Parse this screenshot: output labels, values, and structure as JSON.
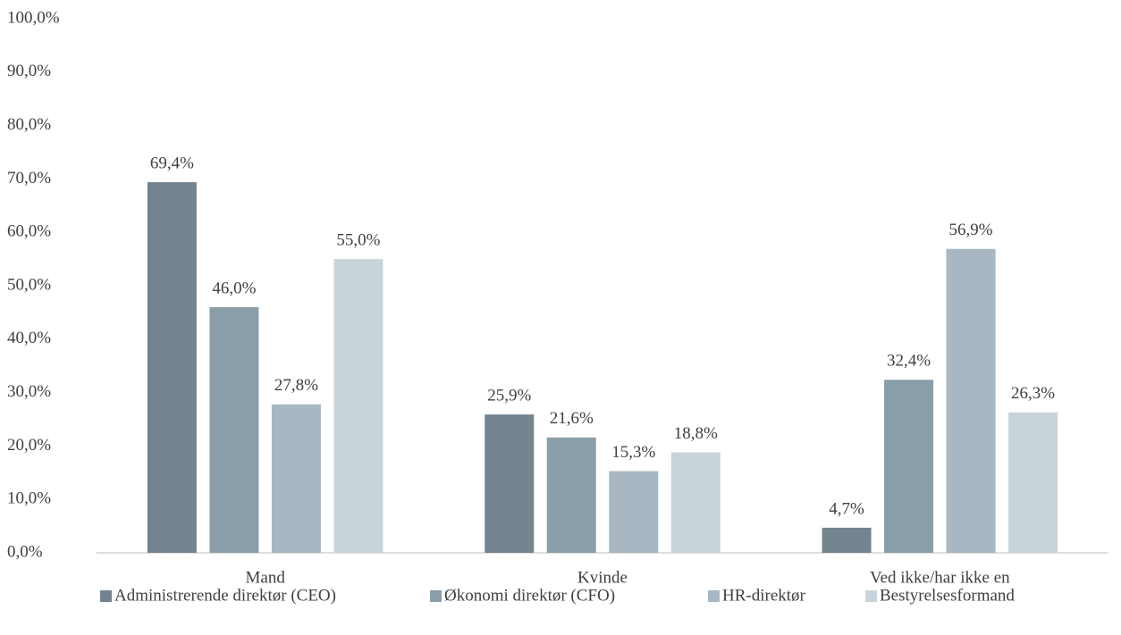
{
  "chart_data": {
    "type": "bar",
    "categories": [
      "Mand",
      "Kvinde",
      "Ved ikke/har ikke en"
    ],
    "series": [
      {
        "name": "Administrerende direktør (CEO)",
        "color": "#73848f",
        "values": [
          69.4,
          25.9,
          4.7
        ],
        "value_labels": [
          "69,4%",
          "25,9%",
          "4,7%"
        ]
      },
      {
        "name": "Økonomi direktør (CFO)",
        "color": "#8a9ea9",
        "values": [
          46.0,
          21.6,
          32.4
        ],
        "value_labels": [
          "46,0%",
          "21,6%",
          "32,4%"
        ]
      },
      {
        "name": "HR-direktør",
        "color": "#a8b7c1",
        "values": [
          27.8,
          15.3,
          56.9
        ],
        "value_labels": [
          "27,8%",
          "15,3%",
          "56,9%"
        ]
      },
      {
        "name": "Bestyrelsesformand",
        "color": "#c9d4da",
        "values": [
          55.0,
          18.8,
          26.3
        ],
        "value_labels": [
          "55,0%",
          "18,8%",
          "26,3%"
        ]
      }
    ],
    "ylim": [
      0,
      100
    ],
    "yticks": [
      {
        "value": 0,
        "label": "0,0%"
      },
      {
        "value": 10,
        "label": "10,0%"
      },
      {
        "value": 20,
        "label": "20,0%"
      },
      {
        "value": 30,
        "label": "30,0%"
      },
      {
        "value": 40,
        "label": "40,0%"
      },
      {
        "value": 50,
        "label": "50,0%"
      },
      {
        "value": 60,
        "label": "60,0%"
      },
      {
        "value": 70,
        "label": "70,0%"
      },
      {
        "value": 80,
        "label": "80,0%"
      },
      {
        "value": 90,
        "label": "90,0%"
      },
      {
        "value": 100,
        "label": "100,0%"
      }
    ],
    "grid": false,
    "legend": "bottom"
  }
}
